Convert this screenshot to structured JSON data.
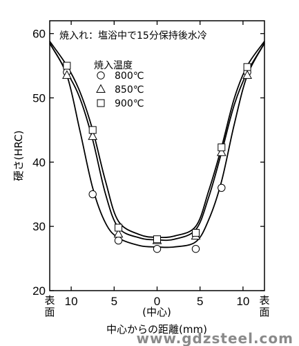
{
  "chart_data": {
    "type": "scatter",
    "title": "焼入れ：塩浴中で15分保持後水冷",
    "xlabel": "中心からの距離(mm)",
    "ylabel": "硬さ(HRC)",
    "xlim": [
      -12.5,
      12.5
    ],
    "ylim": [
      20,
      62
    ],
    "x_ticks": [
      {
        "value": -10,
        "label": "10"
      },
      {
        "value": -5,
        "label": "5"
      },
      {
        "value": 0,
        "label": "0"
      },
      {
        "value": 5,
        "label": "5"
      },
      {
        "value": 10,
        "label": "10"
      }
    ],
    "y_ticks": [
      20,
      30,
      40,
      50,
      60
    ],
    "x_center_label": "(中心)",
    "x_edge_label_left": "表面",
    "x_edge_label_right": "表面",
    "legend_title": "焼入温度",
    "legend_position": "top-left",
    "series": [
      {
        "name": "800℃",
        "marker": "circle",
        "points": [
          {
            "x": -10.5,
            "y": 54
          },
          {
            "x": -7.5,
            "y": 35
          },
          {
            "x": -4.5,
            "y": 27.8
          },
          {
            "x": 0,
            "y": 26.5
          },
          {
            "x": 4.5,
            "y": 26.5
          },
          {
            "x": 7.5,
            "y": 36
          },
          {
            "x": 10.5,
            "y": 54
          }
        ],
        "curve": [
          {
            "x": -12.5,
            "y": 58.5
          },
          {
            "x": -10.5,
            "y": 53.5
          },
          {
            "x": -9,
            "y": 45
          },
          {
            "x": -7.5,
            "y": 36
          },
          {
            "x": -6,
            "y": 30.5
          },
          {
            "x": -4.5,
            "y": 28.2
          },
          {
            "x": -2,
            "y": 27
          },
          {
            "x": 0,
            "y": 26.8
          },
          {
            "x": 2,
            "y": 26.8
          },
          {
            "x": 4.5,
            "y": 27.6
          },
          {
            "x": 6,
            "y": 31
          },
          {
            "x": 7.5,
            "y": 37
          },
          {
            "x": 9,
            "y": 46
          },
          {
            "x": 10.5,
            "y": 53.5
          },
          {
            "x": 12.5,
            "y": 58.5
          }
        ]
      },
      {
        "name": "850℃",
        "marker": "triangle",
        "points": [
          {
            "x": -10.5,
            "y": 53.5
          },
          {
            "x": -7.5,
            "y": 44
          },
          {
            "x": -4.5,
            "y": 28.8
          },
          {
            "x": 0,
            "y": 27.8
          },
          {
            "x": 4.5,
            "y": 28.5
          },
          {
            "x": 7.5,
            "y": 41.5
          },
          {
            "x": 10.5,
            "y": 53.5
          }
        ],
        "curve": [
          {
            "x": -12.5,
            "y": 58.5
          },
          {
            "x": -10.5,
            "y": 54
          },
          {
            "x": -9,
            "y": 50
          },
          {
            "x": -7.5,
            "y": 43.5
          },
          {
            "x": -6,
            "y": 35
          },
          {
            "x": -4.5,
            "y": 29.8
          },
          {
            "x": -2,
            "y": 28.2
          },
          {
            "x": 0,
            "y": 27.9
          },
          {
            "x": 2,
            "y": 28
          },
          {
            "x": 4.5,
            "y": 29.5
          },
          {
            "x": 6,
            "y": 34.5
          },
          {
            "x": 7.5,
            "y": 41.5
          },
          {
            "x": 9,
            "y": 49
          },
          {
            "x": 10.5,
            "y": 54
          },
          {
            "x": 12.5,
            "y": 58.5
          }
        ]
      },
      {
        "name": "900℃",
        "marker": "square",
        "points": [
          {
            "x": -10.5,
            "y": 55
          },
          {
            "x": -7.5,
            "y": 45
          },
          {
            "x": -4.5,
            "y": 29.8
          },
          {
            "x": 0,
            "y": 28
          },
          {
            "x": 4.5,
            "y": 29
          },
          {
            "x": 7.5,
            "y": 42.3
          },
          {
            "x": 10.5,
            "y": 54.8
          }
        ],
        "curve": [
          {
            "x": -12.5,
            "y": 58.8
          },
          {
            "x": -10.5,
            "y": 55
          },
          {
            "x": -9,
            "y": 51
          },
          {
            "x": -7.5,
            "y": 45
          },
          {
            "x": -6,
            "y": 37
          },
          {
            "x": -4.5,
            "y": 30.8
          },
          {
            "x": -2,
            "y": 28.7
          },
          {
            "x": 0,
            "y": 28.3
          },
          {
            "x": 2,
            "y": 28.5
          },
          {
            "x": 4.5,
            "y": 30
          },
          {
            "x": 6,
            "y": 35.5
          },
          {
            "x": 7.5,
            "y": 42.3
          },
          {
            "x": 9,
            "y": 50
          },
          {
            "x": 10.5,
            "y": 55
          },
          {
            "x": 12.5,
            "y": 58.8
          }
        ]
      }
    ]
  },
  "watermark": "www.gdzsteel.com"
}
